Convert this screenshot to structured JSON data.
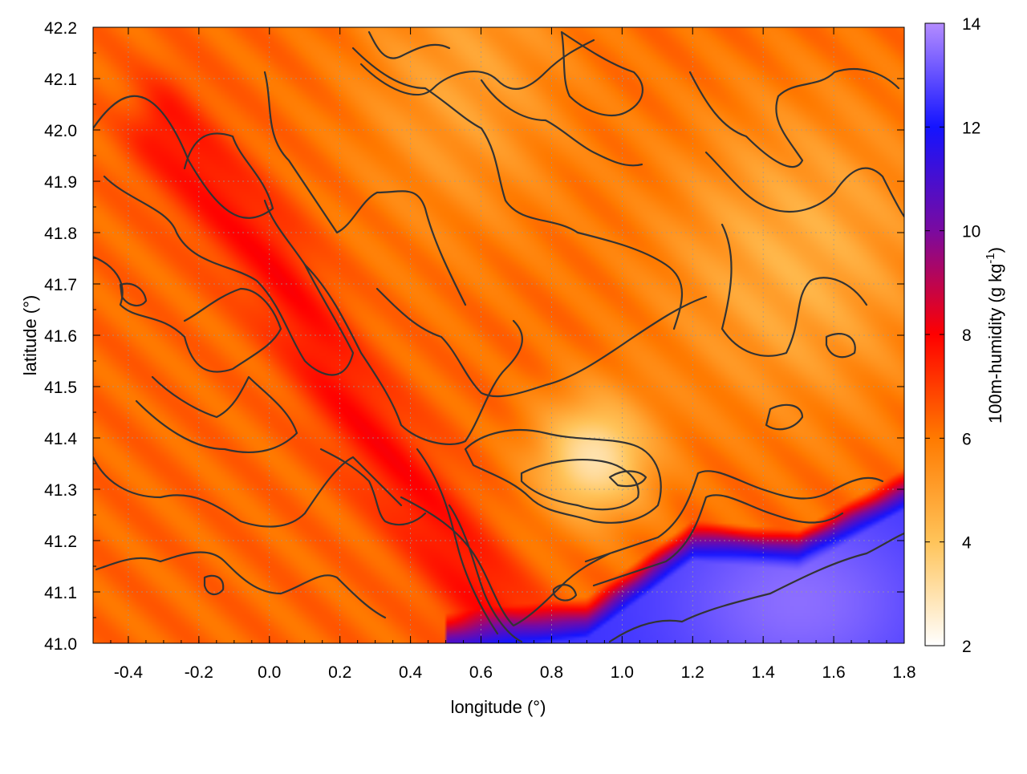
{
  "chart_data": {
    "type": "heatmap",
    "xlabel": "longitude (°)",
    "ylabel": "latitude (°)",
    "xlim": [
      -0.5,
      1.8
    ],
    "ylim": [
      41.0,
      42.2
    ],
    "x_ticks": [
      "-0.4",
      "-0.2",
      "0.0",
      "0.2",
      "0.4",
      "0.6",
      "0.8",
      "1.0",
      "1.2",
      "1.4",
      "1.6",
      "1.8"
    ],
    "x_tick_values": [
      -0.4,
      -0.2,
      0.0,
      0.2,
      0.4,
      0.6,
      0.8,
      1.0,
      1.2,
      1.4,
      1.6,
      1.8
    ],
    "y_ticks": [
      "41.0",
      "41.1",
      "41.2",
      "41.3",
      "41.4",
      "41.5",
      "41.6",
      "41.7",
      "41.8",
      "41.9",
      "42.0",
      "42.1",
      "42.2"
    ],
    "y_tick_values": [
      41.0,
      41.1,
      41.2,
      41.3,
      41.4,
      41.5,
      41.6,
      41.7,
      41.8,
      41.9,
      42.0,
      42.1,
      42.2
    ],
    "grid": true,
    "colorbar": {
      "label_main": "100m-humidity (g kg",
      "label_sup": "-1",
      "label_close": ")",
      "range": [
        2,
        14
      ],
      "ticks": [
        "2",
        "4",
        "6",
        "8",
        "10",
        "12",
        "14"
      ],
      "tick_values": [
        2,
        4,
        6,
        8,
        10,
        12,
        14
      ],
      "colormap": [
        {
          "v": 2,
          "c": "#ffffff"
        },
        {
          "v": 4,
          "c": "#ffc45a"
        },
        {
          "v": 6,
          "c": "#ff7a00"
        },
        {
          "v": 8,
          "c": "#ff0000"
        },
        {
          "v": 10,
          "c": "#7a0aa0"
        },
        {
          "v": 12,
          "c": "#1414ff"
        },
        {
          "v": 14,
          "c": "#b48cff"
        }
      ]
    },
    "field_features": {
      "background": 6.3,
      "ridge_band": {
        "points": [
          [
            -0.3,
            42.0
          ],
          [
            0.0,
            41.75
          ],
          [
            0.2,
            41.5
          ],
          [
            0.4,
            41.3
          ],
          [
            0.6,
            41.1
          ],
          [
            0.7,
            41.0
          ]
        ],
        "value": 7.8
      },
      "dry_blob": {
        "center": [
          0.92,
          41.36
        ],
        "value": 3.0
      },
      "moist_sea": {
        "points": [
          [
            0.5,
            41.02
          ],
          [
            0.9,
            41.05
          ],
          [
            1.2,
            41.2
          ],
          [
            1.5,
            41.18
          ],
          [
            1.8,
            41.3
          ]
        ],
        "value": 12.5
      },
      "sea_light": {
        "center": [
          1.5,
          41.08
        ],
        "value": 13.5
      },
      "dry_northeast": {
        "center": [
          1.5,
          41.75
        ],
        "value": 4.6
      },
      "dry_north": {
        "center": [
          0.55,
          42.1
        ],
        "value": 5.0
      }
    },
    "contour_color": "#333333"
  }
}
